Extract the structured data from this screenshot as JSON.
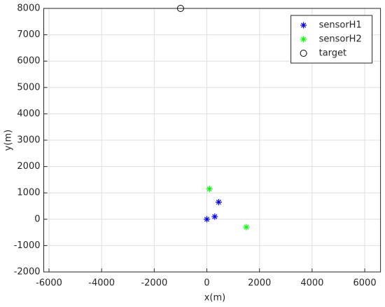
{
  "chart_data": {
    "type": "scatter",
    "xlabel": "x(m)",
    "ylabel": "y(m)",
    "xlim": [
      -6200,
      6600
    ],
    "ylim": [
      -2000,
      8000
    ],
    "xticks": [
      -6000,
      -4000,
      -2000,
      0,
      2000,
      4000,
      6000
    ],
    "yticks": [
      -2000,
      -1000,
      0,
      1000,
      2000,
      3000,
      4000,
      5000,
      6000,
      7000,
      8000
    ],
    "grid": true,
    "legend": "upper right",
    "series": [
      {
        "name": "sensorH1",
        "color": "#0000ff",
        "marker": "asterisk",
        "x": [
          0,
          300,
          450
        ],
        "y": [
          0,
          100,
          650
        ]
      },
      {
        "name": "sensorH2",
        "color": "#00ff00",
        "marker": "asterisk",
        "x": [
          100,
          1500
        ],
        "y": [
          1150,
          -300
        ]
      },
      {
        "name": "target",
        "color": "#000000",
        "marker": "circle",
        "x": [
          -1000
        ],
        "y": [
          8000
        ]
      }
    ]
  }
}
